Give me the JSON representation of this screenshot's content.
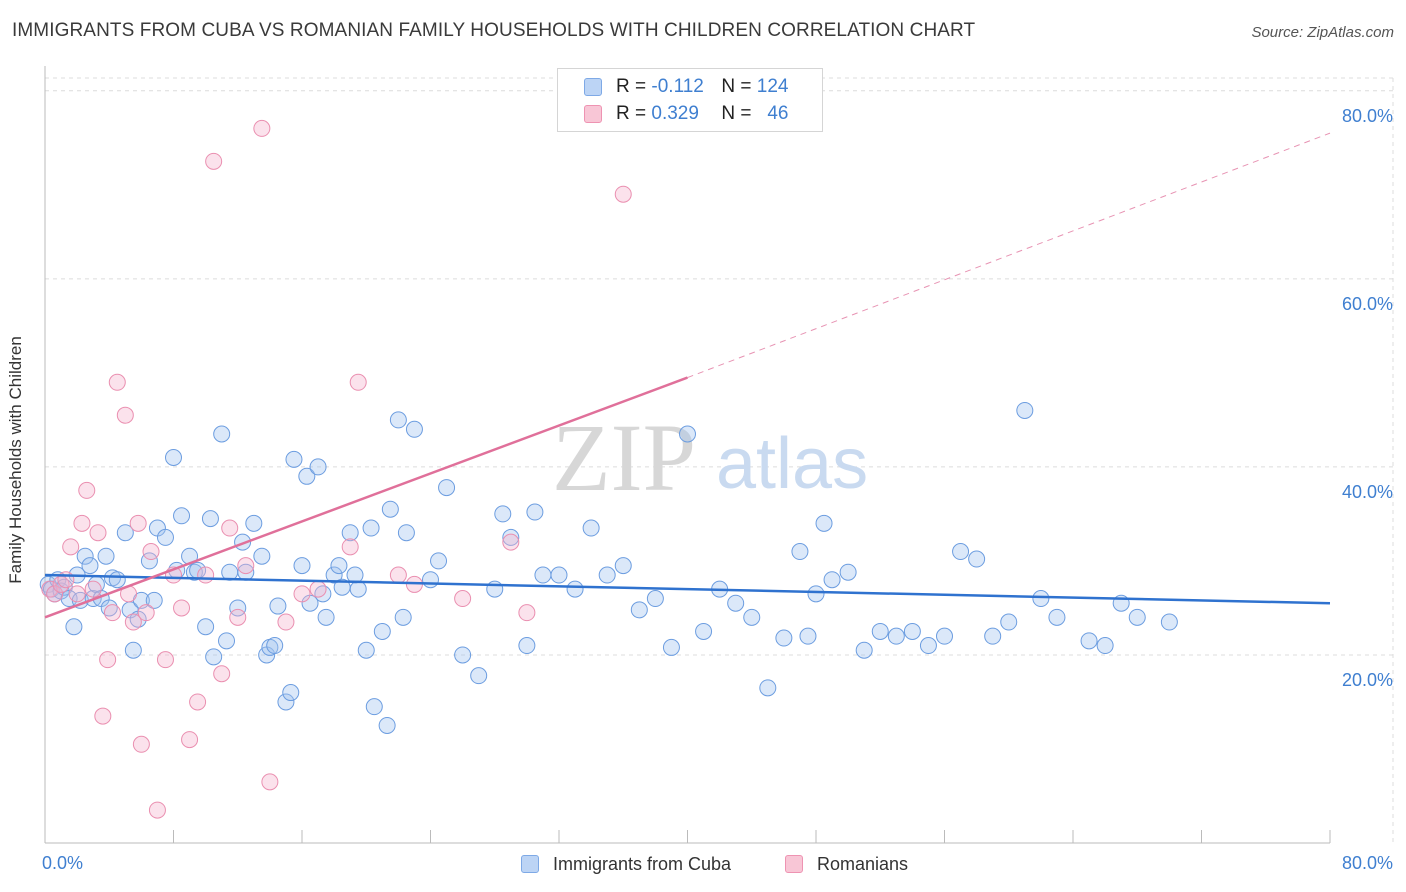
{
  "title": "IMMIGRANTS FROM CUBA VS ROMANIAN FAMILY HOUSEHOLDS WITH CHILDREN CORRELATION CHART",
  "source": "Source: ZipAtlas.com",
  "watermark": {
    "zip": "ZIP",
    "atlas": "atlas"
  },
  "legend": {
    "r_label": "R =",
    "n_label": "N =",
    "series": [
      {
        "name": "Immigrants from Cuba",
        "r": "-0.112",
        "n": "124",
        "color": "#5b8fd6"
      },
      {
        "name": "Romanians",
        "r": "0.329",
        "n": "46",
        "color": "#e8799f"
      }
    ]
  },
  "chart_data": {
    "type": "scatter",
    "title": "IMMIGRANTS FROM CUBA VS ROMANIAN FAMILY HOUSEHOLDS WITH CHILDREN CORRELATION CHART",
    "xlabel": "",
    "ylabel": "Family Households with Children",
    "xlim": [
      0,
      80
    ],
    "ylim": [
      0,
      82
    ],
    "x_tick_labels": [
      "0.0%",
      "80.0%"
    ],
    "y_ticks": [
      20,
      40,
      60,
      80
    ],
    "y_tick_labels": [
      "20.0%",
      "40.0%",
      "60.0%",
      "80.0%"
    ],
    "grid": true,
    "series": [
      {
        "name": "Immigrants from Cuba",
        "color": "#5b8fd6",
        "x": [
          0.2,
          0.4,
          0.6,
          0.8,
          1.0,
          1.2,
          1.5,
          1.8,
          2.0,
          2.2,
          2.5,
          2.8,
          3.0,
          3.2,
          3.5,
          3.8,
          4.0,
          4.2,
          4.5,
          5.0,
          5.3,
          5.5,
          5.8,
          6.0,
          6.5,
          6.8,
          7.0,
          7.5,
          8.0,
          8.2,
          8.5,
          9.0,
          9.3,
          9.5,
          10.0,
          10.3,
          10.5,
          11.0,
          11.3,
          11.5,
          12.0,
          12.3,
          12.5,
          13.0,
          13.5,
          13.8,
          14.0,
          14.3,
          14.5,
          15.0,
          15.3,
          15.5,
          16.0,
          16.3,
          16.5,
          17.0,
          17.3,
          17.5,
          18.0,
          18.3,
          18.5,
          19.0,
          19.3,
          19.5,
          20.0,
          20.3,
          20.5,
          21.0,
          21.3,
          21.5,
          22.0,
          22.3,
          22.5,
          23.0,
          24.0,
          24.5,
          25.0,
          26.0,
          27.0,
          28.0,
          28.5,
          29.0,
          30.0,
          30.5,
          31.0,
          32.0,
          33.0,
          34.0,
          35.0,
          36.0,
          37.0,
          38.0,
          39.0,
          40.0,
          41.0,
          42.0,
          43.0,
          44.0,
          45.0,
          46.0,
          47.0,
          47.5,
          48.0,
          48.5,
          49.0,
          50.0,
          51.0,
          52.0,
          53.0,
          54.0,
          55.0,
          56.0,
          57.0,
          58.0,
          59.0,
          60.0,
          61.0,
          62.0,
          63.0,
          65.0,
          66.0,
          67.0,
          68.0,
          70.0
        ],
        "y": [
          27.5,
          27.0,
          26.5,
          28.0,
          26.8,
          27.2,
          26.0,
          23.0,
          28.5,
          25.8,
          30.5,
          29.5,
          26.0,
          27.5,
          26.0,
          30.5,
          25.0,
          28.2,
          28.0,
          33.0,
          24.8,
          20.5,
          23.8,
          25.8,
          30.0,
          25.8,
          33.5,
          32.5,
          41.0,
          29.0,
          34.8,
          30.5,
          28.8,
          29.0,
          23.0,
          34.5,
          19.8,
          43.5,
          21.5,
          28.8,
          25.0,
          32.0,
          28.8,
          34.0,
          30.5,
          20.0,
          20.8,
          21.0,
          25.2,
          15.0,
          16.0,
          40.8,
          29.5,
          39.0,
          25.5,
          40.0,
          26.5,
          24.0,
          28.5,
          29.5,
          27.2,
          33.0,
          28.5,
          27.0,
          20.5,
          33.5,
          14.5,
          22.5,
          12.5,
          35.5,
          45.0,
          24.0,
          33.0,
          44.0,
          28.0,
          30.0,
          37.8,
          20.0,
          17.8,
          27.0,
          35.0,
          32.5,
          21.0,
          35.2,
          28.5,
          28.5,
          27.0,
          33.5,
          28.5,
          29.5,
          24.8,
          26.0,
          20.8,
          43.5,
          22.5,
          27.0,
          25.5,
          24.0,
          16.5,
          21.8,
          31.0,
          22.0,
          26.5,
          34.0,
          28.0,
          28.8,
          20.5,
          22.5,
          22.0,
          22.5,
          21.0,
          22.0,
          31.0,
          30.2,
          22.0,
          23.5,
          46.0,
          26.0,
          24.0,
          21.5,
          21.0,
          25.5,
          24.0,
          23.5
        ]
      },
      {
        "name": "Romanians",
        "color": "#e8799f",
        "x": [
          0.3,
          0.6,
          1.0,
          1.3,
          1.6,
          2.0,
          2.3,
          2.6,
          3.0,
          3.3,
          3.6,
          3.9,
          4.2,
          4.5,
          5.0,
          5.2,
          5.5,
          5.8,
          6.0,
          6.3,
          6.6,
          7.0,
          7.5,
          8.0,
          8.5,
          9.0,
          9.5,
          10.0,
          10.5,
          11.0,
          11.5,
          12.0,
          12.5,
          13.5,
          14.0,
          15.0,
          16.0,
          17.0,
          19.0,
          19.5,
          22.0,
          23.0,
          26.0,
          29.0,
          30.0,
          36.0
        ],
        "y": [
          27.0,
          26.5,
          27.5,
          28.0,
          31.5,
          26.5,
          34.0,
          37.5,
          27.0,
          33.0,
          13.5,
          19.5,
          24.5,
          49.0,
          45.5,
          26.5,
          23.5,
          34.0,
          10.5,
          24.5,
          31.0,
          3.5,
          19.5,
          28.5,
          25.0,
          11.0,
          15.0,
          28.5,
          72.5,
          18.0,
          33.5,
          24.0,
          29.5,
          76.0,
          6.5,
          23.5,
          26.5,
          27.0,
          31.5,
          49.0,
          28.5,
          27.5,
          26.0,
          32.0,
          24.5,
          69.0
        ]
      }
    ],
    "trend_lines": [
      {
        "series": "Immigrants from Cuba",
        "style": "solid",
        "x": [
          0,
          80
        ],
        "y": [
          28.5,
          25.5
        ]
      },
      {
        "series": "Romanians",
        "style": "solid",
        "x": [
          0,
          40
        ],
        "y": [
          24.0,
          49.5
        ]
      },
      {
        "series": "Romanians",
        "style": "dashed",
        "x": [
          40,
          80
        ],
        "y": [
          49.5,
          75.5
        ]
      }
    ]
  }
}
